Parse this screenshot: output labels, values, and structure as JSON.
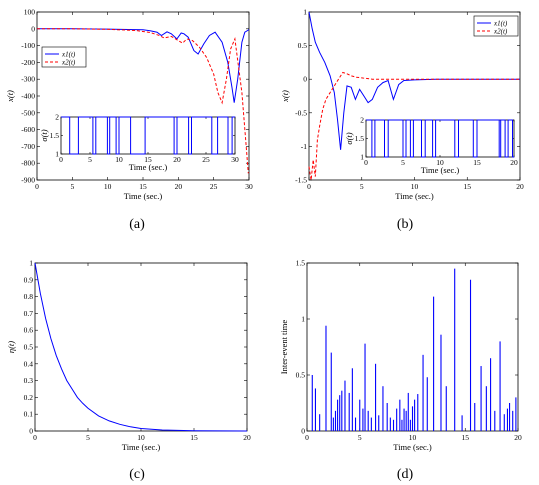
{
  "colors": {
    "blue": "#0000ff",
    "red": "#ff0000",
    "axis": "#000000"
  },
  "chart_data": [
    {
      "panel": "(a)",
      "type": "line",
      "xlabel": "Time (sec.)",
      "ylabel": "x(t)",
      "xlim": [
        0,
        30
      ],
      "ylim": [
        -900,
        100
      ],
      "xticks": [
        0,
        5,
        10,
        15,
        20,
        25,
        30
      ],
      "yticks": [
        100,
        0,
        -100,
        -200,
        -300,
        -400,
        -500,
        -600,
        -700,
        -800,
        -900
      ],
      "legend": {
        "position": "top-left",
        "entries": [
          "x1(t)",
          "x2(t)"
        ]
      },
      "series": [
        {
          "name": "x1(t)",
          "color": "#0000ff",
          "dash": false,
          "x": [
            0,
            5,
            10,
            15,
            16,
            17,
            17.6,
            18.4,
            19,
            19.8,
            20.4,
            20.8,
            21.4,
            22.2,
            22.8,
            23.6,
            24.4,
            25.2,
            26.2,
            27,
            27.6,
            27.9,
            28.4,
            29,
            29.4,
            29.8,
            30
          ],
          "y": [
            0,
            0,
            -2,
            -6,
            -12,
            -20,
            -40,
            -18,
            -30,
            -60,
            -25,
            -30,
            -50,
            -130,
            -150,
            -90,
            -40,
            -20,
            -80,
            -200,
            -350,
            -440,
            -300,
            -80,
            -20,
            -10,
            -5
          ]
        },
        {
          "name": "x2(t)",
          "color": "#ff0000",
          "dash": true,
          "x": [
            0,
            5,
            10,
            14,
            16,
            17.2,
            18,
            19,
            20,
            20.6,
            21.2,
            22,
            23,
            24,
            25,
            25.6,
            26.2,
            26.8,
            27.4,
            28,
            29,
            29.6,
            29.9
          ],
          "y": [
            0,
            0,
            -3,
            -10,
            -22,
            -38,
            -55,
            -45,
            -70,
            -85,
            -60,
            -70,
            -110,
            -170,
            -270,
            -380,
            -440,
            -300,
            -120,
            -60,
            -380,
            -700,
            -860
          ]
        }
      ],
      "inset": {
        "ylabel": "σ(t)",
        "xlabel": "Time (sec.)",
        "xlim": [
          0,
          30
        ],
        "ylim": [
          1,
          2
        ],
        "xticks": [
          0,
          5,
          10,
          15,
          20,
          25,
          30
        ],
        "yticks": [
          1,
          1.5,
          2
        ],
        "switch_times": [
          0,
          1.5,
          3,
          5.5,
          6,
          8,
          8.4,
          9.5,
          10,
          12,
          14.5,
          19.5,
          20,
          22,
          22.5,
          26,
          27,
          28.8,
          29.5,
          30
        ],
        "start_level": 2
      }
    },
    {
      "panel": "(b)",
      "type": "line",
      "xlabel": "Time (sec.)",
      "ylabel": "x(t)",
      "xlim": [
        0,
        20
      ],
      "ylim": [
        -1.5,
        1
      ],
      "xticks": [
        0,
        5,
        10,
        15,
        20
      ],
      "yticks": [
        1,
        0.5,
        0,
        -0.5,
        -1,
        -1.5
      ],
      "legend": {
        "position": "top-right",
        "entries": [
          "x1(t)",
          "x2(t)"
        ]
      },
      "series": [
        {
          "name": "x1(t)",
          "color": "#0000ff",
          "dash": false,
          "x": [
            0,
            0.3,
            0.6,
            1,
            1.5,
            2,
            2.4,
            2.7,
            3,
            3.3,
            3.6,
            4,
            4.4,
            4.8,
            5.2,
            5.6,
            6,
            6.5,
            7,
            7.5,
            8,
            8.5,
            9,
            10,
            12,
            15,
            20
          ],
          "y": [
            1,
            0.75,
            0.55,
            0.4,
            0.25,
            0.05,
            -0.2,
            -0.6,
            -1.05,
            -0.5,
            -0.1,
            -0.12,
            -0.3,
            -0.15,
            -0.25,
            -0.35,
            -0.3,
            -0.12,
            -0.05,
            -0.02,
            -0.3,
            -0.08,
            -0.02,
            -0.01,
            0,
            0,
            0
          ]
        },
        {
          "name": "x2(t)",
          "color": "#ff0000",
          "dash": true,
          "x": [
            0,
            0.2,
            0.4,
            0.6,
            0.8,
            1,
            1.3,
            1.6,
            2,
            2.4,
            2.8,
            3.2,
            3.6,
            4,
            4.5,
            5,
            6,
            7,
            8,
            9,
            10,
            12,
            15,
            20
          ],
          "y": [
            -1.3,
            -1.5,
            -1.2,
            -1.45,
            -0.9,
            -0.7,
            -0.45,
            -0.3,
            -0.2,
            -0.1,
            0,
            0.1,
            0.08,
            0.05,
            0.03,
            0.02,
            0,
            0,
            0,
            0,
            0,
            0,
            0,
            0
          ]
        }
      ],
      "inset": {
        "ylabel": "σ(t)",
        "xlabel": "Time (sec.)",
        "xlim": [
          0,
          20
        ],
        "ylim": [
          1,
          2
        ],
        "xticks": [
          0,
          5,
          10,
          15,
          20
        ],
        "yticks": [
          1,
          1.5,
          2
        ],
        "switch_times": [
          0,
          0.8,
          1.2,
          2.5,
          3,
          5,
          5.4,
          6,
          6.4,
          7.5,
          8,
          9,
          9.4,
          12,
          12.5,
          14.5,
          15,
          18,
          18.2,
          18.8,
          19.2,
          19.8,
          20
        ],
        "start_level": 2
      }
    },
    {
      "panel": "(c)",
      "type": "line",
      "xlabel": "Time (sec.)",
      "ylabel": "η(t)",
      "xlim": [
        0,
        20
      ],
      "ylim": [
        0,
        1
      ],
      "xticks": [
        0,
        5,
        10,
        15,
        20
      ],
      "yticks": [
        1,
        0.9,
        0.8,
        0.7,
        0.6,
        0.5,
        0.4,
        0.3,
        0.2,
        0.1,
        0
      ],
      "series": [
        {
          "name": "",
          "color": "#0000ff",
          "dash": false,
          "x": [
            0,
            0.5,
            1,
            1.5,
            2,
            2.5,
            3,
            3.5,
            4,
            4.5,
            5,
            6,
            7,
            8,
            9,
            10,
            12,
            15,
            20
          ],
          "y": [
            1,
            0.82,
            0.67,
            0.55,
            0.45,
            0.37,
            0.3,
            0.25,
            0.2,
            0.165,
            0.135,
            0.09,
            0.06,
            0.04,
            0.025,
            0.015,
            0.006,
            0.001,
            0
          ]
        }
      ]
    },
    {
      "panel": "(d)",
      "type": "bar",
      "xlabel": "Time (sec.)",
      "ylabel": "Inter-event time",
      "xlim": [
        0,
        20
      ],
      "ylim": [
        0,
        1.5
      ],
      "xticks": [
        0,
        5,
        10,
        15,
        20
      ],
      "yticks": [
        1.5,
        1,
        0.5,
        0
      ],
      "x": [
        0.5,
        0.8,
        1.2,
        1.8,
        2.3,
        2.5,
        2.7,
        2.9,
        3.1,
        3.3,
        3.6,
        4.0,
        4.3,
        4.6,
        5.0,
        5.3,
        5.5,
        5.8,
        6.1,
        6.5,
        6.8,
        7.2,
        7.6,
        7.9,
        8.2,
        8.5,
        8.8,
        9.0,
        9.2,
        9.4,
        9.6,
        9.8,
        10.0,
        10.2,
        10.5,
        11.0,
        11.4,
        12.0,
        12.7,
        13.2,
        14.0,
        14.7,
        15.5,
        15.9,
        16.5,
        17.0,
        17.4,
        17.8,
        18.3,
        18.7,
        19.0,
        19.2,
        19.5,
        19.8
      ],
      "values": [
        0.5,
        0.38,
        0.15,
        0.94,
        0.7,
        0.12,
        0.18,
        0.28,
        0.32,
        0.36,
        0.45,
        0.34,
        0.56,
        0.12,
        0.28,
        0.2,
        0.78,
        0.18,
        0.12,
        0.6,
        0.14,
        0.4,
        0.25,
        0.12,
        0.1,
        0.2,
        0.28,
        0.1,
        0.2,
        0.18,
        0.34,
        0.1,
        0.22,
        0.28,
        0.33,
        0.68,
        0.48,
        1.2,
        0.86,
        0.4,
        1.45,
        0.14,
        1.35,
        0.25,
        0.58,
        0.4,
        0.65,
        0.18,
        0.8,
        0.15,
        0.2,
        0.25,
        0.18,
        0.3
      ],
      "color": "#0000ff"
    }
  ],
  "captions": [
    "(a)",
    "(b)",
    "(c)",
    "(d)"
  ]
}
